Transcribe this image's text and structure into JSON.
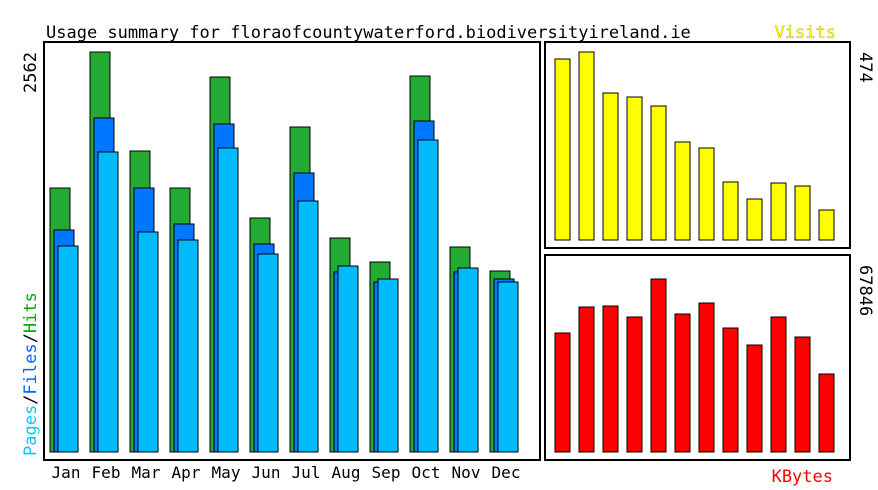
{
  "chart_data": {
    "type": "bar",
    "title": "Usage summary for floraofcountywaterford.biodiversityireland.ie",
    "categories": [
      "Jan",
      "Feb",
      "Mar",
      "Apr",
      "May",
      "Jun",
      "Jul",
      "Aug",
      "Sep",
      "Oct",
      "Nov",
      "Dec"
    ],
    "left_axis_label": {
      "parts": [
        {
          "text": "Pages",
          "color": "#00ccff"
        },
        {
          "text": "/",
          "color": "#000000"
        },
        {
          "text": "Files",
          "color": "#0066ff"
        },
        {
          "text": "/",
          "color": "#000000"
        },
        {
          "text": "Hits",
          "color": "#00aa00"
        }
      ]
    },
    "left_axis_max_label": "2562",
    "left_ylim": [
      0,
      2562
    ],
    "series": [
      {
        "name": "Hits",
        "color": "#22aa33",
        "values": [
          1690,
          2560,
          1930,
          1690,
          2400,
          1500,
          2080,
          1370,
          1220,
          2410,
          1310,
          1160
        ]
      },
      {
        "name": "Files",
        "color": "#0077ff",
        "values": [
          1420,
          2140,
          1690,
          1460,
          2100,
          1330,
          1790,
          1150,
          1090,
          2120,
          1150,
          1110
        ]
      },
      {
        "name": "Pages",
        "color": "#00bbff",
        "values": [
          1320,
          1920,
          1410,
          1360,
          1950,
          1270,
          1610,
          1190,
          1110,
          2000,
          1180,
          1090
        ]
      }
    ],
    "visits": {
      "label": "Visits",
      "color": "#ffff00",
      "max_label": "474",
      "ylim": [
        0,
        474
      ],
      "values": [
        456,
        474,
        370,
        361,
        338,
        248,
        233,
        145,
        103,
        143,
        137,
        75
      ]
    },
    "kbytes": {
      "label": "KBytes",
      "color": "#ff0000",
      "max_label": "67846",
      "ylim": [
        0,
        67846
      ],
      "values": [
        43300,
        52600,
        53000,
        49000,
        62800,
        50200,
        54200,
        45000,
        38700,
        49000,
        41600,
        28400
      ]
    }
  }
}
